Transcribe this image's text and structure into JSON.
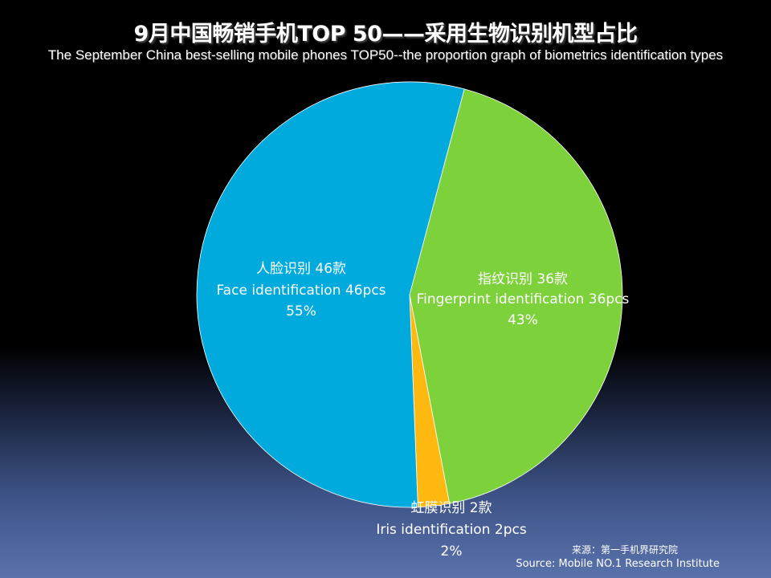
{
  "chart_data": {
    "type": "pie",
    "title": "9月中国畅销手机TOP 50——采用生物识别机型占比",
    "subtitle": "The September China best-selling mobile phones TOP50--the proportion graph of biometrics identification types",
    "slices": [
      {
        "label_cn": "指纹识别  36款",
        "label_en": "Fingerprint identification 36pcs",
        "count": 36,
        "percent_label": "43%",
        "color": "#7dd13b"
      },
      {
        "label_cn": "虹膜识别  2款",
        "label_en": "Iris identification 2pcs",
        "count": 2,
        "percent_label": "2%",
        "color": "#ffb80f"
      },
      {
        "label_cn": "人脸识别 46款",
        "label_en": "Face identification 46pcs",
        "count": 46,
        "percent_label": "55%",
        "color": "#00aadc"
      }
    ]
  },
  "source": {
    "cn": "来源：第一手机界研究院",
    "en": "Source: Mobile NO.1 Research Institute"
  }
}
